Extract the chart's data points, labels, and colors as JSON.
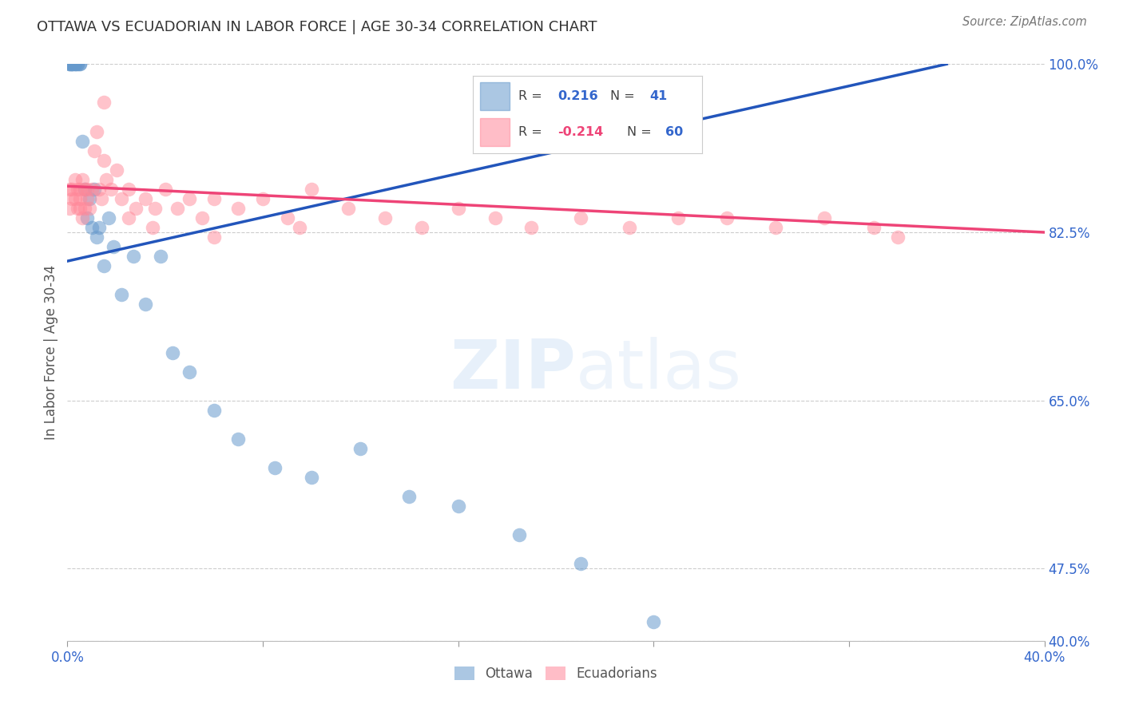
{
  "title": "OTTAWA VS ECUADORIAN IN LABOR FORCE | AGE 30-34 CORRELATION CHART",
  "source": "Source: ZipAtlas.com",
  "ylabel": "In Labor Force | Age 30-34",
  "xlim": [
    0.0,
    0.4
  ],
  "ylim": [
    0.4,
    1.0
  ],
  "yticks": [
    0.4,
    0.475,
    0.65,
    0.825,
    1.0
  ],
  "ytick_labels": [
    "40.0%",
    "47.5%",
    "65.0%",
    "82.5%",
    "100.0%"
  ],
  "xticks": [
    0.0,
    0.08,
    0.16,
    0.24,
    0.32,
    0.4
  ],
  "xtick_labels": [
    "0.0%",
    "",
    "",
    "",
    "",
    "40.0%"
  ],
  "grid_color": "#cccccc",
  "bg_color": "#ffffff",
  "ottawa_color": "#6699cc",
  "ecuadorian_color": "#ff8899",
  "blue_line_color": "#2255bb",
  "pink_line_color": "#ee4477",
  "ottawa_R": "0.216",
  "ottawa_N": "41",
  "ecuadorian_R": "-0.214",
  "ecuadorian_N": "60",
  "title_color": "#333333",
  "axis_tick_color": "#3366cc",
  "source_color": "#777777",
  "watermark": "ZIPatlas",
  "watermark_color": "#aaccee",
  "blue_line_x0": 0.0,
  "blue_line_y0": 0.795,
  "blue_line_x1": 0.36,
  "blue_line_y1": 1.0,
  "pink_line_x0": 0.0,
  "pink_line_x1": 0.4,
  "pink_line_y0": 0.873,
  "pink_line_y1": 0.825,
  "ottawa_x": [
    0.001,
    0.001,
    0.001,
    0.002,
    0.002,
    0.002,
    0.002,
    0.003,
    0.003,
    0.003,
    0.004,
    0.004,
    0.005,
    0.005,
    0.006,
    0.007,
    0.008,
    0.009,
    0.01,
    0.011,
    0.012,
    0.013,
    0.015,
    0.017,
    0.019,
    0.022,
    0.027,
    0.032,
    0.038,
    0.043,
    0.05,
    0.06,
    0.07,
    0.085,
    0.1,
    0.12,
    0.14,
    0.16,
    0.185,
    0.21,
    0.24
  ],
  "ottawa_y": [
    1.0,
    1.0,
    1.0,
    1.0,
    1.0,
    1.0,
    1.0,
    1.0,
    1.0,
    1.0,
    1.0,
    1.0,
    1.0,
    1.0,
    0.92,
    0.87,
    0.84,
    0.86,
    0.83,
    0.87,
    0.82,
    0.83,
    0.79,
    0.84,
    0.81,
    0.76,
    0.8,
    0.75,
    0.8,
    0.7,
    0.68,
    0.64,
    0.61,
    0.58,
    0.57,
    0.6,
    0.55,
    0.54,
    0.51,
    0.48,
    0.42
  ],
  "ecu_x": [
    0.001,
    0.001,
    0.002,
    0.002,
    0.003,
    0.003,
    0.004,
    0.004,
    0.005,
    0.005,
    0.005,
    0.006,
    0.006,
    0.007,
    0.007,
    0.008,
    0.008,
    0.009,
    0.01,
    0.011,
    0.012,
    0.013,
    0.014,
    0.015,
    0.016,
    0.018,
    0.02,
    0.022,
    0.025,
    0.028,
    0.032,
    0.036,
    0.04,
    0.045,
    0.05,
    0.055,
    0.06,
    0.07,
    0.08,
    0.09,
    0.1,
    0.115,
    0.13,
    0.145,
    0.16,
    0.175,
    0.19,
    0.21,
    0.23,
    0.25,
    0.27,
    0.29,
    0.31,
    0.33,
    0.015,
    0.025,
    0.035,
    0.06,
    0.095,
    0.34
  ],
  "ecu_y": [
    0.87,
    0.85,
    0.87,
    0.86,
    0.88,
    0.86,
    0.87,
    0.85,
    0.87,
    0.86,
    0.85,
    0.88,
    0.84,
    0.87,
    0.85,
    0.87,
    0.86,
    0.85,
    0.87,
    0.91,
    0.93,
    0.87,
    0.86,
    0.9,
    0.88,
    0.87,
    0.89,
    0.86,
    0.87,
    0.85,
    0.86,
    0.85,
    0.87,
    0.85,
    0.86,
    0.84,
    0.86,
    0.85,
    0.86,
    0.84,
    0.87,
    0.85,
    0.84,
    0.83,
    0.85,
    0.84,
    0.83,
    0.84,
    0.83,
    0.84,
    0.84,
    0.83,
    0.84,
    0.83,
    0.96,
    0.84,
    0.83,
    0.82,
    0.83,
    0.82
  ]
}
